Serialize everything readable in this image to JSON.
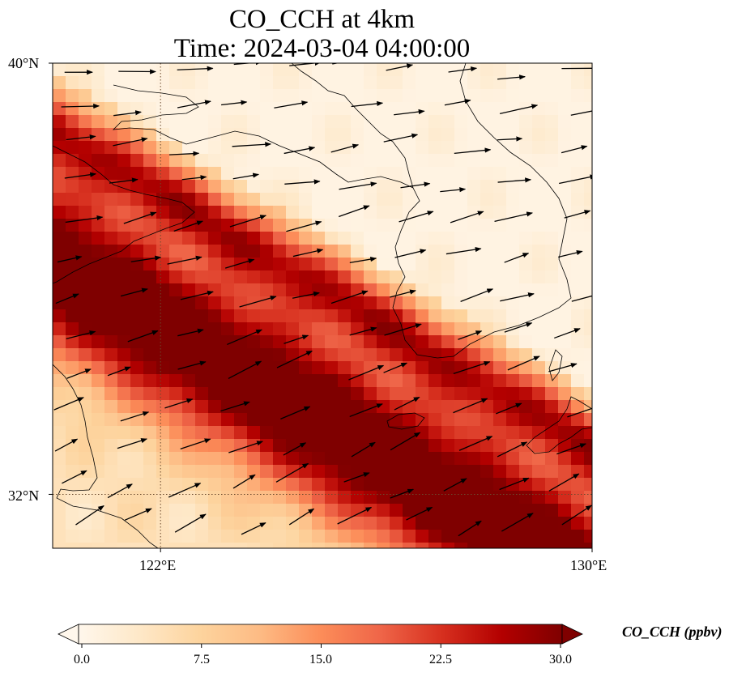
{
  "title": {
    "line1": "CO_CCH at 4km",
    "line2": "Time: 2024-03-04 04:00:00"
  },
  "map": {
    "lon_range": [
      120,
      130
    ],
    "lat_range": [
      31,
      40
    ],
    "lat_ticks": [
      {
        "value": 40,
        "label": "40°N"
      },
      {
        "value": 32,
        "label": "32°N"
      }
    ],
    "lon_ticks": [
      {
        "value": 122,
        "label": "122°E"
      },
      {
        "value": 130,
        "label": "130°E"
      }
    ],
    "gridlines": [
      {
        "lon": 122
      },
      {
        "lat": 32
      }
    ],
    "plume": {
      "description_values_ppbv": "max 30 along NW-SE band",
      "band_axis_lon_lat": [
        [
          120,
          36.3
        ],
        [
          130,
          30.4
        ]
      ],
      "core_half_width_deg_lat": 1.6
    },
    "vectors": "wind vectors pointing generally east-northeast"
  },
  "colorbar": {
    "label": "CO_CCH (ppbv)",
    "min": 0.0,
    "max": 30.0,
    "extend": "both",
    "ticks": [
      "0.0",
      "7.5",
      "15.0",
      "22.5",
      "30.0"
    ],
    "colormap": "OrRd",
    "stops": [
      "#fff7ec",
      "#fee8c8",
      "#fdd49e",
      "#fdbb84",
      "#fc8d59",
      "#ef6548",
      "#d7301f",
      "#b30000",
      "#7f0000"
    ]
  }
}
